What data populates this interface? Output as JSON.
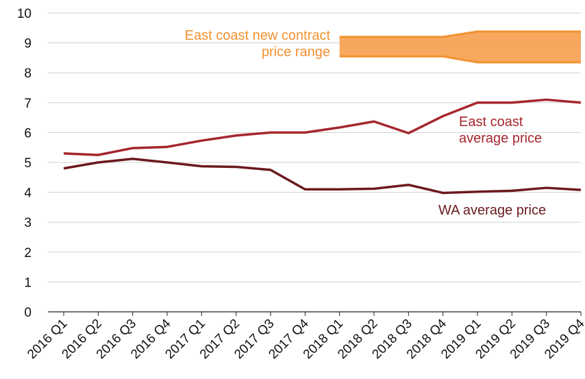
{
  "chart_data": {
    "type": "line",
    "categories": [
      "2016 Q1",
      "2016 Q2",
      "2016 Q3",
      "2016 Q4",
      "2017 Q1",
      "2017 Q2",
      "2017 Q3",
      "2017 Q4",
      "2018 Q1",
      "2018 Q2",
      "2018 Q3",
      "2018 Q4",
      "2019 Q1",
      "2019 Q2",
      "2019 Q3",
      "2019 Q4"
    ],
    "series": [
      {
        "name": "East coast average price",
        "color": "#a6262e",
        "values": [
          5.3,
          5.25,
          5.48,
          5.52,
          5.73,
          5.9,
          6.0,
          6.0,
          6.17,
          6.37,
          5.98,
          6.55,
          7.0,
          7.0,
          7.1,
          7.0
        ]
      },
      {
        "name": "WA average price",
        "color": "#6b1a1f",
        "values": [
          4.8,
          5.0,
          5.12,
          5.0,
          4.87,
          4.85,
          4.75,
          4.1,
          4.1,
          4.12,
          4.25,
          3.98,
          4.02,
          4.05,
          4.15,
          4.08
        ]
      },
      {
        "name": "East coast new contract price range",
        "color": "#f39130",
        "type": "range",
        "high": [
          null,
          null,
          null,
          null,
          null,
          null,
          null,
          null,
          9.2,
          9.2,
          9.2,
          9.2,
          9.38,
          9.38,
          9.38,
          9.38
        ],
        "low": [
          null,
          null,
          null,
          null,
          null,
          null,
          null,
          null,
          8.55,
          8.55,
          8.55,
          8.55,
          8.35,
          8.35,
          8.35,
          8.35
        ]
      }
    ],
    "ylim": [
      0,
      10
    ],
    "yticks": [
      0,
      1,
      2,
      3,
      4,
      5,
      6,
      7,
      8,
      9,
      10
    ],
    "grid": true
  }
}
